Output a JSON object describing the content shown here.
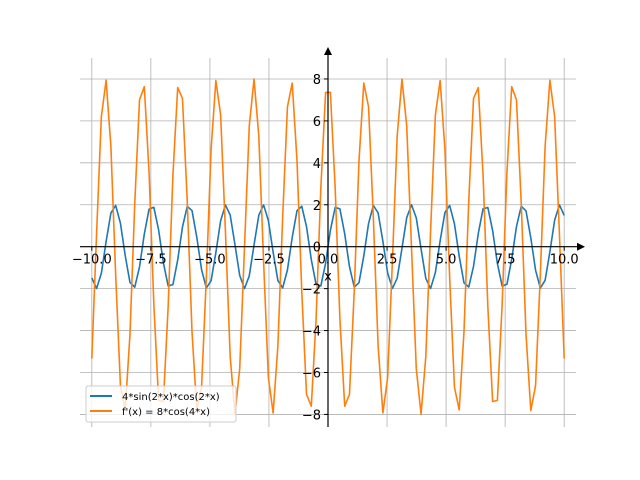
{
  "chart_data": {
    "type": "line",
    "xlabel": "x",
    "ylabel": "",
    "xlim": [
      -10.5,
      10.5
    ],
    "ylim": [
      -8.6,
      9.0
    ],
    "grid": true,
    "legend_position": "bottom-left",
    "x_ticks": [
      -10.0,
      -7.5,
      -5.0,
      -2.5,
      0.0,
      2.5,
      5.0,
      7.5,
      10.0
    ],
    "x_tick_labels": [
      "−10.0",
      "−7.5",
      "−5.0",
      "−2.5",
      "0.0",
      "2.5",
      "5.0",
      "7.5",
      "10.0"
    ],
    "y_ticks": [
      -8,
      -6,
      -4,
      -2,
      0,
      2,
      4,
      6,
      8
    ],
    "y_tick_labels": [
      "−8",
      "−6",
      "−4",
      "−2",
      "0",
      "2",
      "4",
      "6",
      "8"
    ],
    "series": [
      {
        "name": "4*sin(2*x)*cos(2*x)",
        "color": "#1f77b4",
        "expression": "2*sin(4*x)",
        "x_range": [
          -10,
          10
        ],
        "samples": 100
      },
      {
        "name": "f'(x) = 8*cos(4*x)",
        "color": "#ff7f0e",
        "expression": "8*cos(4*x)",
        "x_range": [
          -10,
          10
        ],
        "samples": 100
      }
    ]
  }
}
